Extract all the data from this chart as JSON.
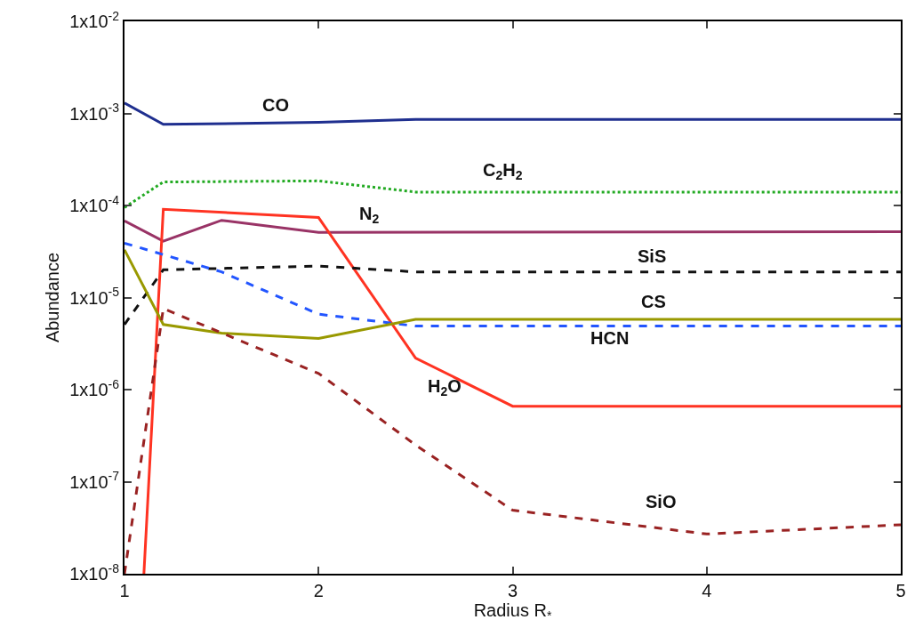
{
  "chart_data": {
    "type": "line",
    "xlabel": "Radius R$_{*}$",
    "ylabel": "Abundance",
    "log": "y",
    "xlim": [
      1,
      5
    ],
    "xticks": [
      1,
      2,
      3,
      4,
      5
    ],
    "ylim": [
      1e-08,
      0.01
    ],
    "yticks": [
      {
        "value": 1e-08,
        "label": "1x10$^{-8}$"
      },
      {
        "value": 1e-07,
        "label": "1x10$^{-7}$"
      },
      {
        "value": 1e-06,
        "label": "1x10$^{-6}$"
      },
      {
        "value": 1e-05,
        "label": "1x10$^{-5}$"
      },
      {
        "value": 0.0001,
        "label": "1x10$^{-4}$"
      },
      {
        "value": 0.001,
        "label": "1x10$^{-3}$"
      },
      {
        "value": 0.01,
        "label": "1x10$^{-2}$"
      }
    ],
    "marker": "none",
    "series": [
      {
        "color": "#1f2f8f",
        "line_style": "solid",
        "x": [
          1,
          1.2,
          2,
          2.5,
          5
        ],
        "values": [
          0.0013,
          0.00076,
          0.0008,
          0.00086,
          0.00086
        ]
      },
      {
        "color": "#22aa22",
        "line_style": "dotted",
        "x": [
          1,
          1.2,
          2,
          2.5,
          5
        ],
        "values": [
          9.5e-05,
          0.00018,
          0.000185,
          0.00014,
          0.00014
        ]
      },
      {
        "color": "#993366",
        "line_style": "solid",
        "x": [
          1,
          1.2,
          1.5,
          2,
          5
        ],
        "values": [
          6.8e-05,
          4.1e-05,
          6.9e-05,
          5.1e-05,
          5.2e-05
        ]
      },
      {
        "color": "#ff3322",
        "line_style": "solid",
        "x": [
          1.1,
          1.2,
          2,
          2.5,
          3,
          5
        ],
        "values": [
          1e-08,
          9.1e-05,
          7.4e-05,
          2.2e-06,
          6.6e-07,
          6.6e-07
        ]
      },
      {
        "color": "#111111",
        "line_style": "dashed",
        "x": [
          1,
          1.2,
          2,
          2.5,
          5
        ],
        "values": [
          5.1e-06,
          2e-05,
          2.2e-05,
          1.9e-05,
          1.9e-05
        ]
      },
      {
        "color": "#2255ff",
        "line_style": "dashed",
        "x": [
          1,
          1.5,
          2,
          2.5,
          5
        ],
        "values": [
          3.9e-05,
          1.9e-05,
          6.6e-06,
          4.9e-06,
          4.9e-06
        ]
      },
      {
        "color": "#999900",
        "line_style": "solid",
        "x": [
          1,
          1.2,
          1.5,
          2,
          2.5,
          5
        ],
        "values": [
          3.3e-05,
          5.1e-06,
          4.1e-06,
          3.6e-06,
          5.8e-06,
          5.8e-06
        ]
      },
      {
        "color": "#992222",
        "line_style": "dashed",
        "x": [
          1,
          1.2,
          2,
          2.5,
          3,
          4,
          5
        ],
        "values": [
          1e-08,
          7.6e-06,
          1.5e-06,
          2.5e-07,
          4.9e-08,
          2.7e-08,
          3.4e-08
        ]
      }
    ],
    "annotations": [
      "CO",
      "C$_{2}$H$_{2}$",
      "N$_{2}$",
      "SiS",
      "CS",
      "HCN",
      "H$_{2}$O",
      "SiO"
    ]
  }
}
